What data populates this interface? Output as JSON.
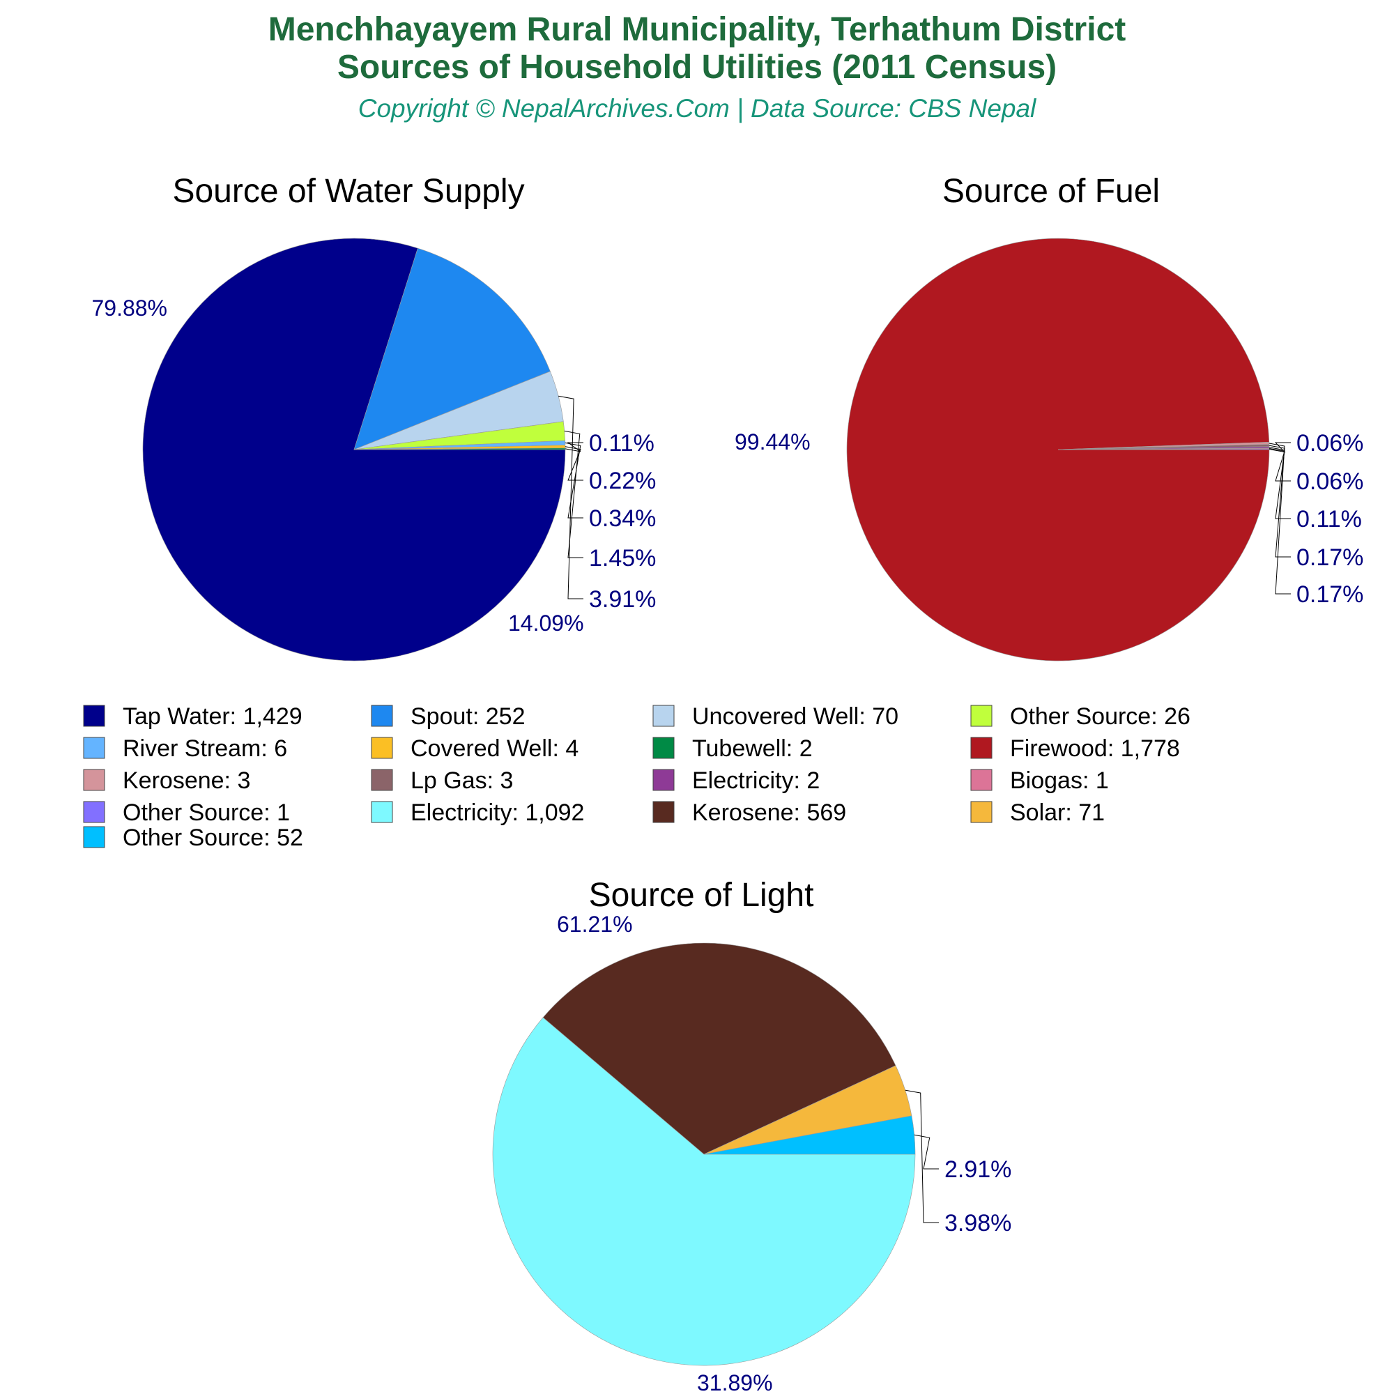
{
  "header": {
    "title_line1": "Menchhayayem Rural Municipality, Terhathum District",
    "title_line2": "Sources of Household Utilities (2011 Census)",
    "subtitle": "Copyright © NepalArchives.Com | Data Source: CBS Nepal"
  },
  "chart_data": [
    {
      "type": "pie",
      "title": "Source of Water Supply",
      "slices": [
        {
          "label": "Tap Water",
          "value": 1429,
          "percent_label": "79.88%",
          "color": "#00008b"
        },
        {
          "label": "Spout",
          "value": 252,
          "percent_label": "14.09%",
          "color": "#1e88f0"
        },
        {
          "label": "Uncovered Well",
          "value": 70,
          "percent_label": "3.91%",
          "color": "#b8d4ee"
        },
        {
          "label": "Other Source",
          "value": 26,
          "percent_label": "1.45%",
          "color": "#c0ff3c"
        },
        {
          "label": "River Stream",
          "value": 6,
          "percent_label": "0.34%",
          "color": "#64b4ff"
        },
        {
          "label": "Covered Well",
          "value": 4,
          "percent_label": "0.22%",
          "color": "#fbbf24"
        },
        {
          "label": "Tubewell",
          "value": 2,
          "percent_label": "0.11%",
          "color": "#008a45"
        }
      ]
    },
    {
      "type": "pie",
      "title": "Source of Fuel",
      "slices": [
        {
          "label": "Firewood",
          "value": 1778,
          "percent_label": "99.44%",
          "color": "#b01820"
        },
        {
          "label": "Kerosene",
          "value": 3,
          "percent_label": "0.17%",
          "color": "#d4949b"
        },
        {
          "label": "Lp Gas",
          "value": 3,
          "percent_label": "0.17%",
          "color": "#8b6469"
        },
        {
          "label": "Electricity",
          "value": 2,
          "percent_label": "0.11%",
          "color": "#8e3a96"
        },
        {
          "label": "Biogas",
          "value": 1,
          "percent_label": "0.06%",
          "color": "#dc7497"
        },
        {
          "label": "Other Source",
          "value": 1,
          "percent_label": "0.06%",
          "color": "#8270ff"
        }
      ]
    },
    {
      "type": "pie",
      "title": "Source of Light",
      "slices": [
        {
          "label": "Electricity",
          "value": 1092,
          "percent_label": "61.21%",
          "color": "#7ef9ff"
        },
        {
          "label": "Kerosene",
          "value": 569,
          "percent_label": "31.89%",
          "color": "#582a20"
        },
        {
          "label": "Solar",
          "value": 71,
          "percent_label": "3.98%",
          "color": "#f5b83c"
        },
        {
          "label": "Other Source",
          "value": 52,
          "percent_label": "2.91%",
          "color": "#00bfff"
        }
      ]
    }
  ],
  "legend": [
    {
      "text": "Tap Water: 1,429",
      "color": "#00008b"
    },
    {
      "text": "Spout: 252",
      "color": "#1e88f0"
    },
    {
      "text": "Uncovered Well: 70",
      "color": "#b8d4ee"
    },
    {
      "text": "Other Source: 26",
      "color": "#c0ff3c"
    },
    {
      "text": "River Stream: 6",
      "color": "#64b4ff"
    },
    {
      "text": "Covered Well: 4",
      "color": "#fbbf24"
    },
    {
      "text": "Tubewell: 2",
      "color": "#008a45"
    },
    {
      "text": "Firewood: 1,778",
      "color": "#b01820"
    },
    {
      "text": "Kerosene: 3",
      "color": "#d4949b"
    },
    {
      "text": "Lp Gas: 3",
      "color": "#8b6469"
    },
    {
      "text": "Electricity: 2",
      "color": "#8e3a96"
    },
    {
      "text": "Biogas: 1",
      "color": "#dc7497"
    },
    {
      "text": "Other Source: 1",
      "color": "#8270ff"
    },
    {
      "text": "Electricity: 1,092",
      "color": "#7ef9ff"
    },
    {
      "text": "Kerosene: 569",
      "color": "#582a20"
    },
    {
      "text": "Solar: 71",
      "color": "#f5b83c"
    },
    {
      "text": "Other Source: 52",
      "color": "#00bfff"
    }
  ]
}
